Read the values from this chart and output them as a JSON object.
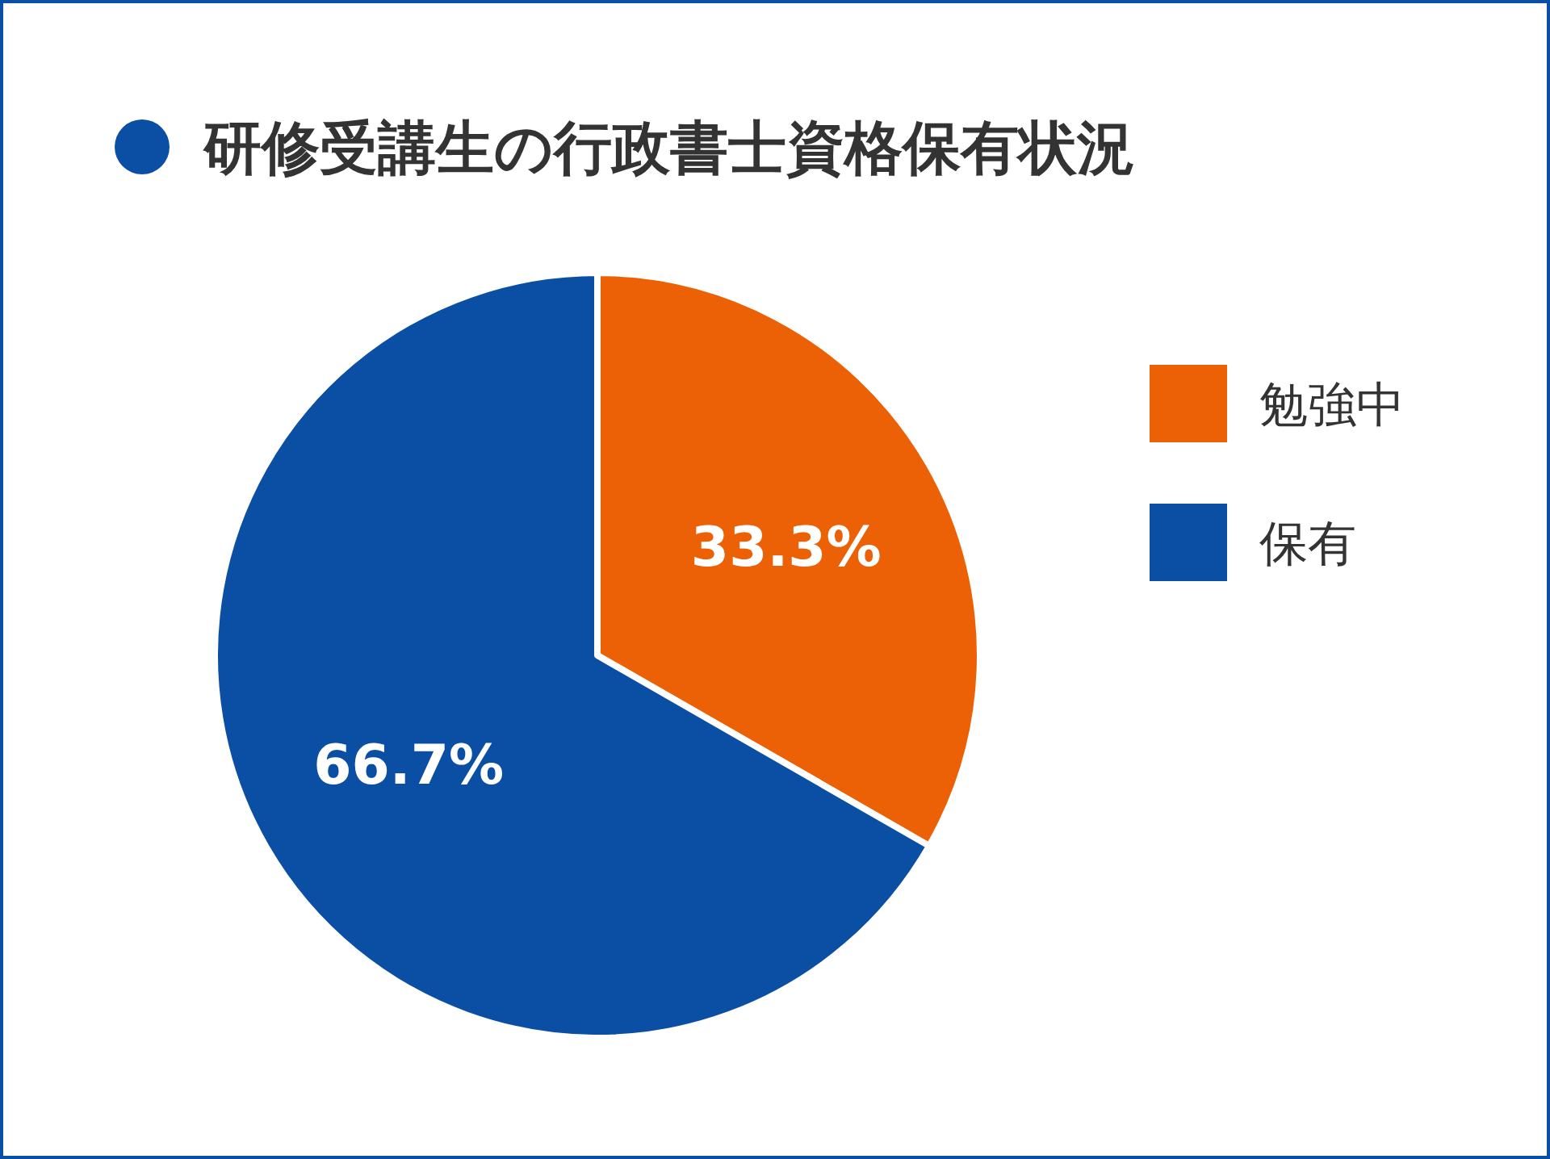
{
  "chart_data": {
    "type": "pie",
    "title": "研修受講生の行政書士資格保有状況",
    "categories": [
      "勉強中",
      "保有"
    ],
    "values": [
      33.3,
      66.7
    ],
    "colors": [
      "#ec6105",
      "#0a4fa3"
    ],
    "value_labels": [
      "33.3%",
      "66.7%"
    ],
    "legend": "right"
  }
}
